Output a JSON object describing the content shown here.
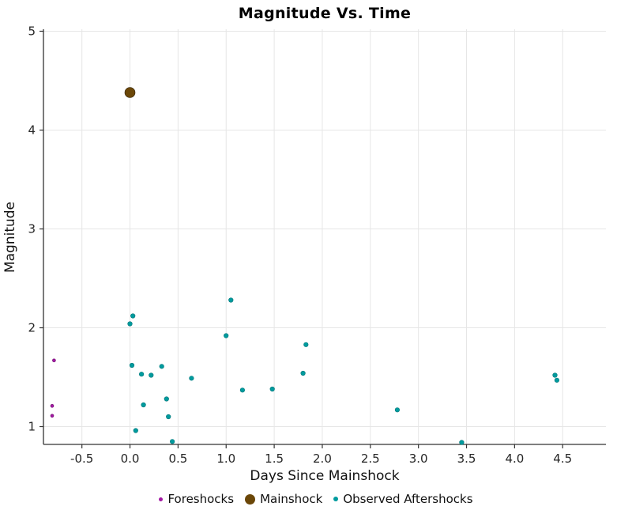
{
  "chart_data": {
    "type": "scatter",
    "title": "Magnitude Vs. Time",
    "xlabel": "Days Since Mainshock",
    "ylabel": "Magnitude",
    "xlim": [
      -0.9,
      4.95
    ],
    "ylim": [
      0.82,
      5.02
    ],
    "x_ticks": [
      -0.5,
      0.0,
      0.5,
      1.0,
      1.5,
      2.0,
      2.5,
      3.0,
      3.5,
      4.0,
      4.5
    ],
    "x_tick_labels": [
      "-0.5",
      "0.0",
      "0.5",
      "1.0",
      "1.5",
      "2.0",
      "2.5",
      "3.0",
      "3.5",
      "4.0",
      "4.5"
    ],
    "y_ticks": [
      1,
      2,
      3,
      4,
      5
    ],
    "y_tick_labels": [
      "1",
      "2",
      "3",
      "4",
      "5"
    ],
    "grid": true,
    "grid_color": "#e6e6e6",
    "axis_color": "#333333",
    "legend_position": "bottom",
    "series": [
      {
        "name": "Foreshocks",
        "color": "#a318a3",
        "edge_color": "#6e106e",
        "marker_radius": 2,
        "points": [
          [
            -0.79,
            1.67
          ],
          [
            -0.81,
            1.21
          ],
          [
            -0.81,
            1.11
          ]
        ]
      },
      {
        "name": "Mainshock",
        "color": "#6b4708",
        "edge_color": "#2f1f04",
        "marker_radius": 6.5,
        "points": [
          [
            0.0,
            4.38
          ]
        ]
      },
      {
        "name": "Observed Aftershocks",
        "color": "#009b9e",
        "edge_color": "#007578",
        "marker_radius": 2.8,
        "points": [
          [
            0.0,
            2.04
          ],
          [
            0.03,
            2.12
          ],
          [
            0.02,
            1.62
          ],
          [
            0.06,
            0.96
          ],
          [
            0.12,
            1.53
          ],
          [
            0.14,
            1.22
          ],
          [
            0.22,
            1.52
          ],
          [
            0.33,
            1.61
          ],
          [
            0.38,
            1.28
          ],
          [
            0.4,
            1.1
          ],
          [
            0.44,
            0.85
          ],
          [
            0.64,
            1.49
          ],
          [
            1.0,
            1.92
          ],
          [
            1.05,
            2.28
          ],
          [
            1.17,
            1.37
          ],
          [
            1.48,
            1.38
          ],
          [
            1.8,
            1.54
          ],
          [
            1.83,
            1.83
          ],
          [
            2.78,
            1.17
          ],
          [
            3.45,
            0.84
          ],
          [
            4.42,
            1.52
          ],
          [
            4.44,
            1.47
          ]
        ]
      }
    ]
  }
}
